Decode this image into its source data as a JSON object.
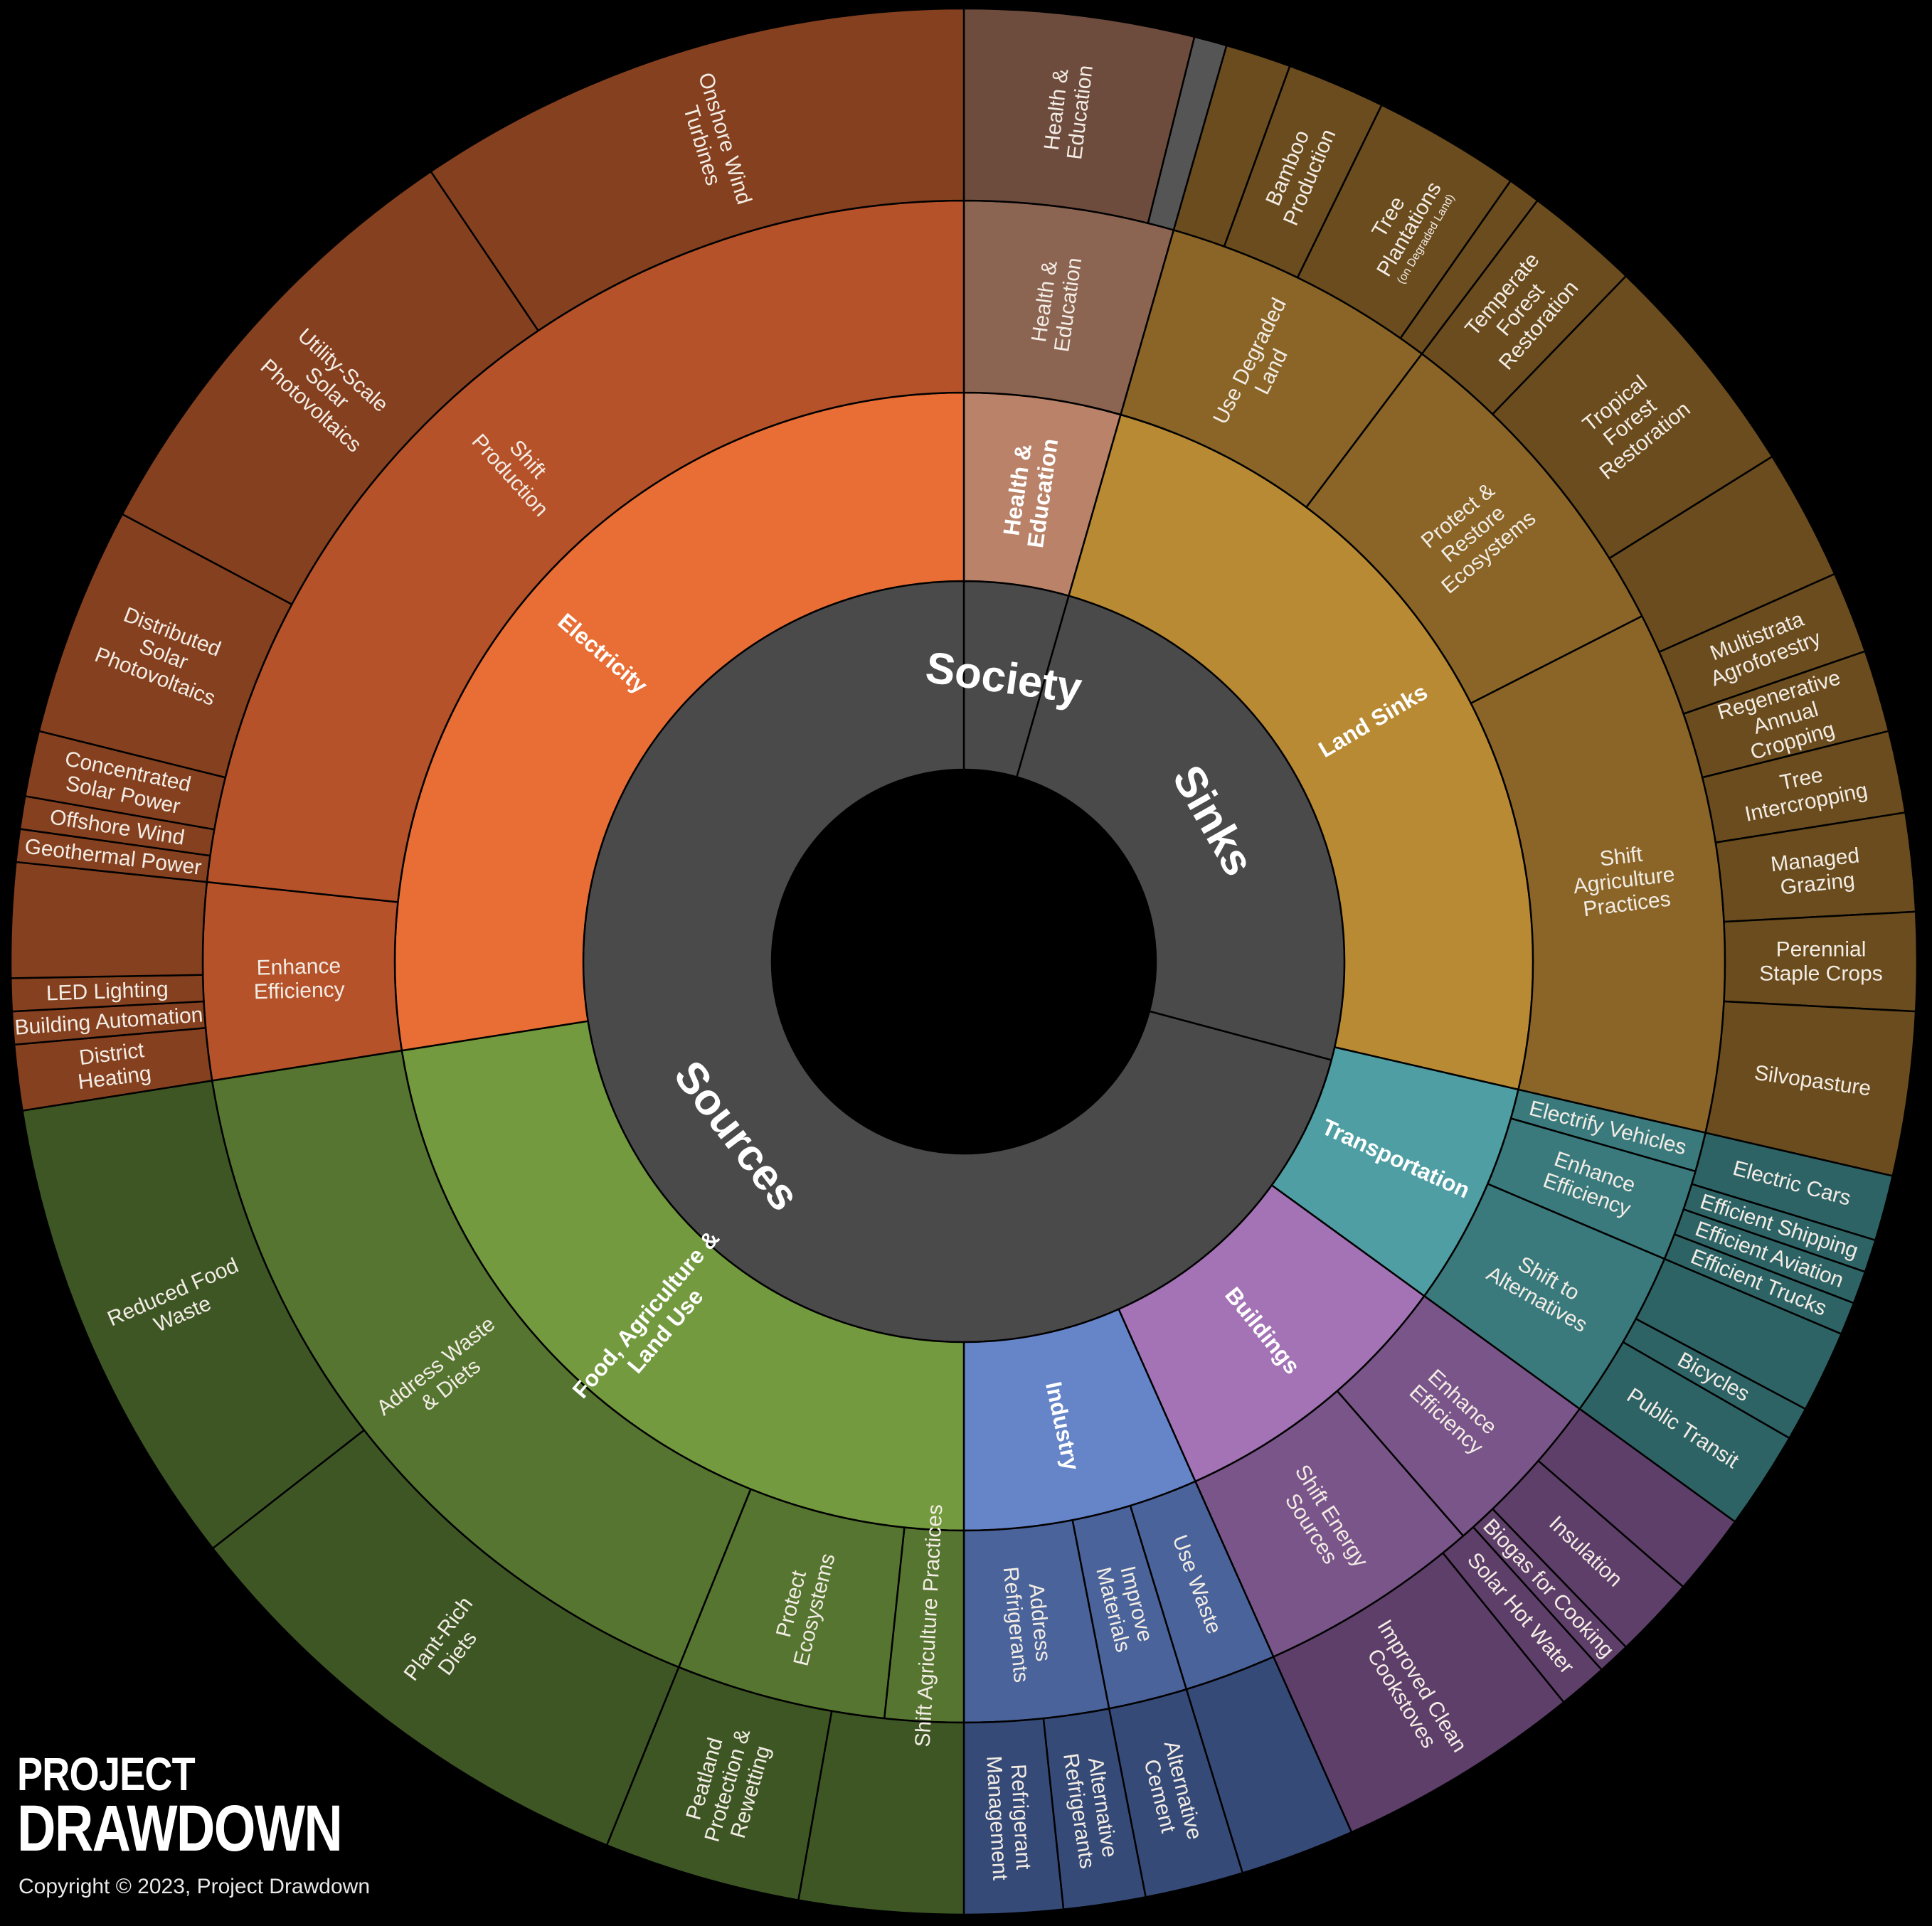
{
  "brand": {
    "line1": "PROJECT",
    "line2": "DRAWDOWN"
  },
  "copyright": "Copyright © 2023, Project Drawdown",
  "chart_data": {
    "type": "sunburst",
    "colors": {
      "sources": "#4a4a4a",
      "electricity": "#e86e35",
      "food": "#739a3e",
      "industry": "#6684c8",
      "buildings": "#a373b5",
      "transportation": "#4e9ea3",
      "land_sinks": "#b98a34",
      "health": "#b98269"
    },
    "level0": [
      {
        "label": "Society",
        "start": 0,
        "end": 16,
        "color": "#4a4a4a"
      },
      {
        "label": "Sinks",
        "start": 16,
        "end": 105,
        "color": "#4a4a4a"
      },
      {
        "label": "Sources",
        "start": 105,
        "end": 360,
        "color": "#4a4a4a"
      }
    ],
    "level1": [
      {
        "label": "Health & Education",
        "start": 0,
        "end": 16,
        "color": "#b98269"
      },
      {
        "label": "Land Sinks",
        "start": 16,
        "end": 103,
        "color": "#b98a34"
      },
      {
        "label": "Transportation",
        "start": 103,
        "end": 126,
        "color": "#4e9ea3"
      },
      {
        "label": "Buildings",
        "start": 126,
        "end": 156,
        "color": "#a373b5"
      },
      {
        "label": "Industry",
        "start": 156,
        "end": 180,
        "color": "#6684c8"
      },
      {
        "label": "Food, Agriculture & Land Use",
        "start": 180,
        "end": 261,
        "color": "#739a3e"
      },
      {
        "label": "Electricity",
        "start": 261,
        "end": 360,
        "color": "#e86e35"
      }
    ],
    "level2": [
      {
        "label": "Health & Education",
        "start": 0,
        "end": 16,
        "color": "#8c6452"
      },
      {
        "label": "Use Degraded Land",
        "start": 16,
        "end": 37,
        "color": "#8a6527"
      },
      {
        "label": "Protect & Restore Ecosystems",
        "start": 37,
        "end": 63,
        "color": "#8a6527"
      },
      {
        "label": "Shift Agriculture Practices",
        "start": 63,
        "end": 103,
        "color": "#8a6527"
      },
      {
        "label": "Electrify Vehicles",
        "start": 103,
        "end": 106,
        "color": "#3a7a7d"
      },
      {
        "label": "Enhance Efficiency",
        "start": 106,
        "end": 113,
        "color": "#3a7a7d"
      },
      {
        "label": "Shift to Alternatives",
        "start": 113,
        "end": 126,
        "color": "#3a7a7d"
      },
      {
        "label": "Enhance Efficiency",
        "start": 126,
        "end": 139,
        "color": "#7a558a"
      },
      {
        "label": "Shift Energy Sources",
        "start": 139,
        "end": 156,
        "color": "#7a558a"
      },
      {
        "label": "Use Waste",
        "start": 156,
        "end": 163,
        "color": "#4a639a"
      },
      {
        "label": "Improve Materials",
        "start": 163,
        "end": 169,
        "color": "#4a639a"
      },
      {
        "label": "Address Refrigerants",
        "start": 169,
        "end": 180,
        "color": "#4a639a"
      },
      {
        "label": "Shift Agriculture Practices",
        "start": 180,
        "end": 186,
        "color": "#557530"
      },
      {
        "label": "Protect Ecosystems",
        "start": 186,
        "end": 202,
        "color": "#557530"
      },
      {
        "label": "Address Waste & Diets",
        "start": 202,
        "end": 261,
        "color": "#557530"
      },
      {
        "label": "Enhance Efficiency",
        "start": 261,
        "end": 276,
        "color": "#b5522a"
      },
      {
        "label": "Shift Production",
        "start": 276,
        "end": 360,
        "color": "#b5522a"
      }
    ],
    "level3": [
      {
        "label": "Health & Education",
        "start": 0,
        "end": 14,
        "color": "#6e4c3d"
      },
      {
        "label": "",
        "start": 14,
        "end": 16,
        "color": "#555555"
      },
      {
        "label": "",
        "start": 16,
        "end": 20,
        "color": "#6a4c1e"
      },
      {
        "label": "Bamboo Production",
        "start": 20,
        "end": 26,
        "color": "#6a4c1e"
      },
      {
        "label": "Tree Plantations",
        "small": "(on Degraded Land)",
        "start": 26,
        "end": 35,
        "color": "#6a4c1e"
      },
      {
        "label": "",
        "start": 35,
        "end": 37,
        "color": "#6a4c1e"
      },
      {
        "label": "Temperate Forest Restoration",
        "start": 37,
        "end": 44,
        "color": "#6a4c1e"
      },
      {
        "label": "Tropical Forest Restoration",
        "start": 44,
        "end": 58,
        "color": "#6a4c1e"
      },
      {
        "label": "",
        "start": 58,
        "end": 66,
        "color": "#6a4c1e"
      },
      {
        "label": "Multistrata Agroforestry",
        "start": 66,
        "end": 71,
        "color": "#6a4c1e"
      },
      {
        "label": "Regenerative Annual Cropping",
        "start": 71,
        "end": 76,
        "color": "#6a4c1e"
      },
      {
        "label": "Tree Intercropping",
        "start": 76,
        "end": 81,
        "color": "#6a4c1e"
      },
      {
        "label": "Managed Grazing",
        "start": 81,
        "end": 87,
        "color": "#6a4c1e"
      },
      {
        "label": "Perennial Staple Crops",
        "start": 87,
        "end": 93,
        "color": "#6a4c1e"
      },
      {
        "label": "Silvopasture",
        "start": 93,
        "end": 103,
        "color": "#6a4c1e"
      },
      {
        "label": "Electric Cars",
        "start": 103,
        "end": 107,
        "color": "#2e6366"
      },
      {
        "label": "Efficient Shipping",
        "start": 107,
        "end": 109,
        "color": "#2e6366"
      },
      {
        "label": "Efficient Aviation",
        "start": 109,
        "end": 111,
        "color": "#2e6366"
      },
      {
        "label": "Efficient Trucks",
        "start": 111,
        "end": 113,
        "color": "#2e6366"
      },
      {
        "label": "",
        "start": 113,
        "end": 118,
        "color": "#2e6366"
      },
      {
        "label": "Bicycles",
        "start": 118,
        "end": 120,
        "color": "#2e6366"
      },
      {
        "label": "Public Transit",
        "start": 120,
        "end": 126,
        "color": "#2e6366"
      },
      {
        "label": "",
        "start": 126,
        "end": 131,
        "color": "#5e3f6a"
      },
      {
        "label": "Insulation",
        "start": 131,
        "end": 136,
        "color": "#5e3f6a"
      },
      {
        "label": "Biogas for Cooking",
        "start": 136,
        "end": 138,
        "color": "#5e3f6a"
      },
      {
        "label": "Solar Hot Water",
        "start": 138,
        "end": 141,
        "color": "#5e3f6a"
      },
      {
        "label": "Improved Clean Cookstoves",
        "start": 141,
        "end": 156,
        "color": "#5e3f6a"
      },
      {
        "label": "",
        "start": 156,
        "end": 163,
        "color": "#364a78"
      },
      {
        "label": "Alternative Cement",
        "start": 163,
        "end": 169,
        "color": "#364a78"
      },
      {
        "label": "Alternative Refrigerants",
        "start": 169,
        "end": 174,
        "color": "#364a78"
      },
      {
        "label": "Refrigerant Management",
        "start": 174,
        "end": 180,
        "color": "#364a78"
      },
      {
        "label": "",
        "start": 180,
        "end": 190,
        "color": "#3e5624"
      },
      {
        "label": "Peatland Protection & Rewetting",
        "start": 190,
        "end": 202,
        "color": "#3e5624"
      },
      {
        "label": "Plant-Rich Diets",
        "start": 202,
        "end": 232,
        "color": "#3e5624"
      },
      {
        "label": "Reduced Food Waste",
        "start": 232,
        "end": 261,
        "color": "#3e5624"
      },
      {
        "label": "District Heating",
        "start": 261,
        "end": 265,
        "color": "#85401f"
      },
      {
        "label": "Building Automation",
        "start": 265,
        "end": 267,
        "color": "#85401f"
      },
      {
        "label": "LED Lighting",
        "start": 267,
        "end": 269,
        "color": "#85401f"
      },
      {
        "label": "",
        "start": 269,
        "end": 276,
        "color": "#85401f"
      },
      {
        "label": "Geothermal Power",
        "start": 276,
        "end": 278,
        "color": "#85401f"
      },
      {
        "label": "Offshore Wind",
        "start": 278,
        "end": 280,
        "color": "#85401f"
      },
      {
        "label": "Concentrated Solar Power",
        "start": 280,
        "end": 284,
        "color": "#85401f"
      },
      {
        "label": "Distributed Solar Photovoltaics",
        "start": 284,
        "end": 298,
        "color": "#85401f"
      },
      {
        "label": "Utility-Scale Solar Photovoltaics",
        "start": 298,
        "end": 326,
        "color": "#85401f"
      },
      {
        "label": "Onshore Wind Turbines",
        "start": 326,
        "end": 360,
        "color": "#85401f"
      }
    ]
  }
}
